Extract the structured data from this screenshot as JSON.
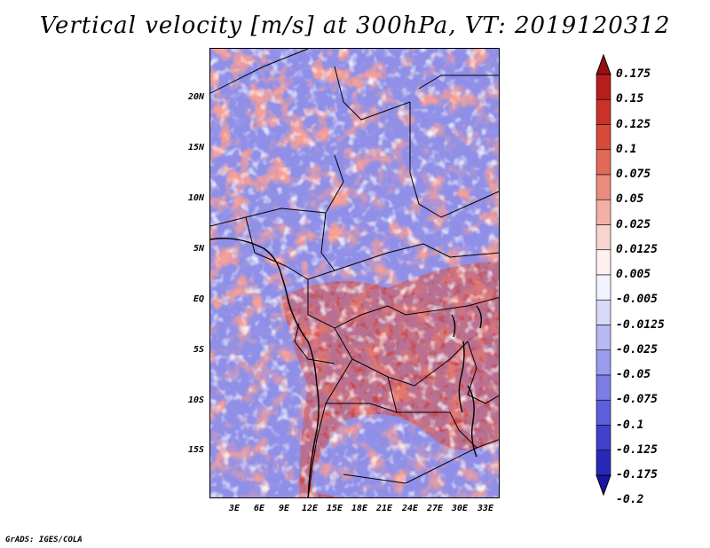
{
  "title": "Vertical velocity [m/s] at 300hPa, VT: 2019120312",
  "credit": "GrADS: IGES/COLA",
  "map": {
    "region": "Central Africa",
    "lat_labels": [
      "20N",
      "15N",
      "10N",
      "5N",
      "EQ",
      "5S",
      "10S",
      "15S"
    ],
    "lon_labels": [
      "3E",
      "6E",
      "9E",
      "12E",
      "15E",
      "18E",
      "21E",
      "24E",
      "27E",
      "30E",
      "33E"
    ],
    "background_color": "#8f8fe8",
    "positive_color": "#d6453a",
    "negative_color": "#5a5ad8"
  },
  "colorbar": {
    "labels": [
      "0.175",
      "0.15",
      "0.125",
      "0.1",
      "0.075",
      "0.05",
      "0.025",
      "0.0125",
      "0.005",
      "-0.005",
      "-0.0125",
      "-0.025",
      "-0.05",
      "-0.075",
      "-0.1",
      "-0.125",
      "-0.175",
      "-0.2"
    ],
    "colors": [
      "#9a0e10",
      "#b51e1c",
      "#c83228",
      "#d64a3c",
      "#e06a5a",
      "#e98c7e",
      "#f2b0a6",
      "#f8d4ce",
      "#fdf0ee",
      "#f2f2ff",
      "#d8d8fa",
      "#b8b8f4",
      "#9a9aee",
      "#7c7ce6",
      "#5e5edc",
      "#4040cc",
      "#2a28b8",
      "#1a14a0"
    ]
  }
}
